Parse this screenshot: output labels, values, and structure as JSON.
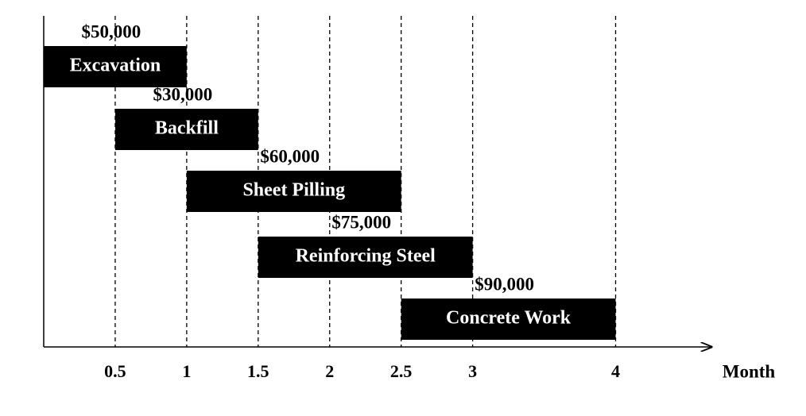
{
  "chart_data": {
    "type": "gantt",
    "categories": [
      "Excavation",
      "Backfill",
      "Sheet Pilling",
      "Reinforcing Steel",
      "Concrete Work"
    ],
    "start": [
      0,
      0.5,
      1,
      1.5,
      2.5
    ],
    "end": [
      1,
      1.5,
      2.5,
      3,
      4
    ],
    "values": [
      50000,
      30000,
      60000,
      75000,
      90000
    ],
    "value_labels": [
      "$50,000",
      "$30,000",
      "$60,000",
      "$75,000",
      "$90,000"
    ],
    "color": "#000000",
    "xlabel": "Month",
    "xlim": [
      0,
      4.67
    ],
    "xticks": [
      0.5,
      1,
      1.5,
      2,
      2.5,
      3,
      4
    ],
    "grid": true
  }
}
